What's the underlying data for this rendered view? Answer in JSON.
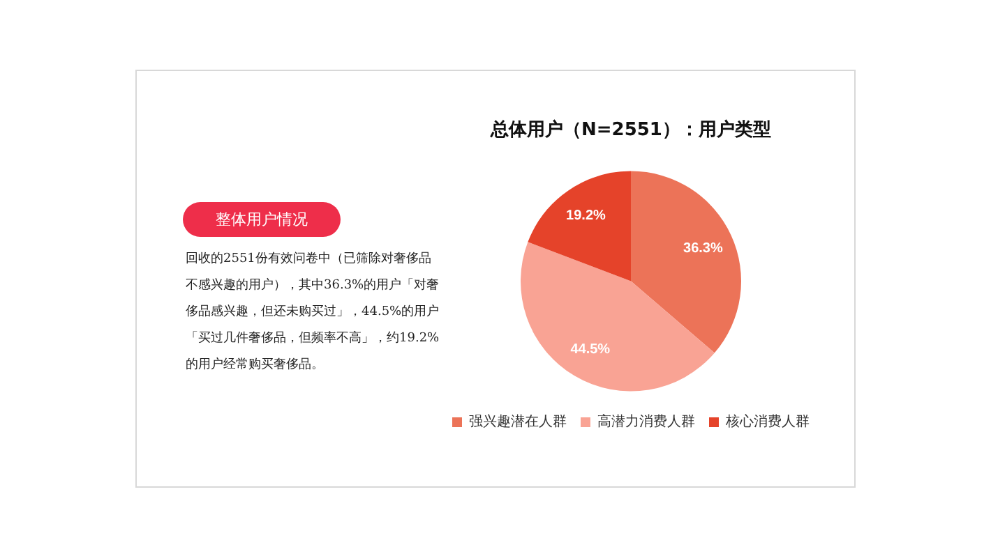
{
  "chart_data": {
    "type": "pie",
    "title": "总体用户（N=2551）：用户类型",
    "categories": [
      "强兴趣潜在人群",
      "高潜力消费人群",
      "核心消费人群"
    ],
    "values": [
      36.3,
      44.5,
      19.2
    ],
    "value_labels": [
      "36.3%",
      "44.5%",
      "19.2%"
    ],
    "colors": [
      "#ec7358",
      "#f9a394",
      "#e5432a"
    ],
    "legend": "bottom",
    "annotations": [
      "整体用户情况",
      "回收的2551份有效问卷中（已筛除对奢侈品不感兴趣的用户），其中36.3%的用户「对奢侈品感兴趣，但还未购买过」，44.5%的用户「买过几件奢侈品，但频率不高」，约19.2%的用户经常购买奢侈品。"
    ]
  }
}
